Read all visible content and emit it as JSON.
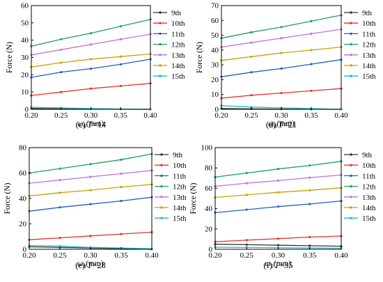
{
  "series_names": [
    "9th",
    "10th",
    "11th",
    "12th",
    "13th",
    "14th",
    "15th"
  ],
  "series_colors": [
    "#333333",
    "#e8302a",
    "#1f5fbf",
    "#1a9e6a",
    "#c070e0",
    "#c8a000",
    "#22b8c8"
  ],
  "chart_data": [
    {
      "type": "line",
      "panel_label": "(c) ",
      "panel_var": "T",
      "panel_value": "=14",
      "ylabel": "Force (N)",
      "xlabel_main": "ω",
      "xlabel_sub": "0",
      "xlabel_unit": "(mm)",
      "x": [
        0.2,
        0.25,
        0.3,
        0.35,
        0.4
      ],
      "xticks": [
        "0.20",
        "0.25",
        "0.30",
        "0.35",
        "0.40"
      ],
      "xlim": [
        0.2,
        0.4
      ],
      "ylim": [
        0,
        60
      ],
      "yticks": [
        "0",
        "10",
        "20",
        "30",
        "40",
        "50",
        "60"
      ],
      "series": [
        {
          "name": "9th",
          "values": [
            0.5,
            0.3,
            0.2,
            0.1,
            0.0
          ]
        },
        {
          "name": "10th",
          "values": [
            8.0,
            10.0,
            12.0,
            13.5,
            15.0
          ]
        },
        {
          "name": "11th",
          "values": [
            18.5,
            21.5,
            23.5,
            26.0,
            29.0
          ]
        },
        {
          "name": "12th",
          "values": [
            36.5,
            40.5,
            44.0,
            48.0,
            52.0
          ]
        },
        {
          "name": "13th",
          "values": [
            31.5,
            34.5,
            37.5,
            40.5,
            43.5
          ]
        },
        {
          "name": "14th",
          "values": [
            24.5,
            27.0,
            29.0,
            30.5,
            32.0
          ]
        },
        {
          "name": "15th",
          "values": [
            1.2,
            0.8,
            0.5,
            0.2,
            0.0
          ]
        }
      ]
    },
    {
      "type": "line",
      "panel_label": "(d) ",
      "panel_var": "T",
      "panel_value": "=21",
      "ylabel": "Force (N)",
      "xlabel_main": "ω",
      "xlabel_sub": "0",
      "xlabel_unit": "(mm)",
      "x": [
        0.2,
        0.25,
        0.3,
        0.35,
        0.4
      ],
      "xticks": [
        "0.20",
        "0.25",
        "0.30",
        "0.35",
        "0.40"
      ],
      "xlim": [
        0.2,
        0.4
      ],
      "ylim": [
        0,
        70
      ],
      "yticks": [
        "0",
        "10",
        "20",
        "30",
        "40",
        "50",
        "60",
        "70"
      ],
      "series": [
        {
          "name": "9th",
          "values": [
            0.5,
            0.3,
            0.2,
            0.1,
            0.0
          ]
        },
        {
          "name": "10th",
          "values": [
            7.5,
            9.5,
            11.0,
            12.5,
            14.0
          ]
        },
        {
          "name": "11th",
          "values": [
            22.0,
            25.0,
            27.5,
            30.5,
            33.5
          ]
        },
        {
          "name": "12th",
          "values": [
            48.0,
            52.0,
            55.5,
            59.5,
            63.5
          ]
        },
        {
          "name": "13th",
          "values": [
            42.0,
            45.0,
            48.0,
            51.0,
            54.0
          ]
        },
        {
          "name": "14th",
          "values": [
            33.0,
            35.5,
            38.0,
            40.0,
            42.0
          ]
        },
        {
          "name": "15th",
          "values": [
            2.5,
            1.5,
            1.0,
            0.5,
            0.0
          ]
        }
      ]
    },
    {
      "type": "line",
      "panel_label": "(e) ",
      "panel_var": "T",
      "panel_value": "=28",
      "ylabel": "Force (N)",
      "xlabel_main": "ω",
      "xlabel_sub": "0",
      "xlabel_unit": "(mm)",
      "x": [
        0.2,
        0.25,
        0.3,
        0.35,
        0.4
      ],
      "xticks": [
        "0.20",
        "0.25",
        "0.30",
        "0.35",
        "0.40"
      ],
      "xlim": [
        0.2,
        0.4
      ],
      "ylim": [
        0,
        80
      ],
      "yticks": [
        "0",
        "20",
        "40",
        "60",
        "80"
      ],
      "series": [
        {
          "name": "9th",
          "values": [
            2.0,
            1.5,
            1.0,
            0.5,
            0.0
          ]
        },
        {
          "name": "10th",
          "values": [
            7.5,
            9.0,
            10.5,
            12.0,
            13.5
          ]
        },
        {
          "name": "11th",
          "values": [
            30.0,
            33.0,
            35.5,
            38.0,
            41.0
          ]
        },
        {
          "name": "12th",
          "values": [
            60.0,
            63.5,
            67.0,
            70.5,
            75.0
          ]
        },
        {
          "name": "13th",
          "values": [
            52.0,
            54.5,
            57.0,
            59.5,
            62.0
          ]
        },
        {
          "name": "14th",
          "values": [
            42.0,
            44.5,
            46.5,
            49.0,
            51.0
          ]
        },
        {
          "name": "15th",
          "values": [
            3.0,
            2.5,
            1.5,
            1.0,
            0.5
          ]
        }
      ]
    },
    {
      "type": "line",
      "panel_label": "(f) ",
      "panel_var": "T",
      "panel_value": "=35",
      "ylabel": "Force (N)",
      "xlabel_main": "ω",
      "xlabel_sub": "0",
      "xlabel_unit": "(mm)",
      "x": [
        0.2,
        0.25,
        0.3,
        0.35,
        0.4
      ],
      "xticks": [
        "0.20",
        "0.25",
        "0.30",
        "0.35",
        "0.40"
      ],
      "xlim": [
        0.2,
        0.4
      ],
      "ylim": [
        0,
        100
      ],
      "yticks": [
        "0",
        "20",
        "40",
        "60",
        "80",
        "100"
      ],
      "series": [
        {
          "name": "9th",
          "values": [
            5.0,
            4.5,
            4.0,
            3.5,
            3.0
          ]
        },
        {
          "name": "10th",
          "values": [
            7.5,
            9.0,
            10.5,
            12.0,
            13.0
          ]
        },
        {
          "name": "11th",
          "values": [
            36.0,
            39.0,
            42.0,
            44.5,
            47.5
          ]
        },
        {
          "name": "12th",
          "values": [
            71.0,
            75.0,
            79.0,
            82.5,
            86.5
          ]
        },
        {
          "name": "13th",
          "values": [
            62.0,
            65.0,
            67.5,
            70.5,
            73.0
          ]
        },
        {
          "name": "14th",
          "values": [
            51.0,
            53.5,
            56.0,
            58.0,
            60.5
          ]
        },
        {
          "name": "15th",
          "values": [
            2.0,
            1.8,
            1.5,
            1.2,
            1.0
          ]
        }
      ]
    }
  ]
}
